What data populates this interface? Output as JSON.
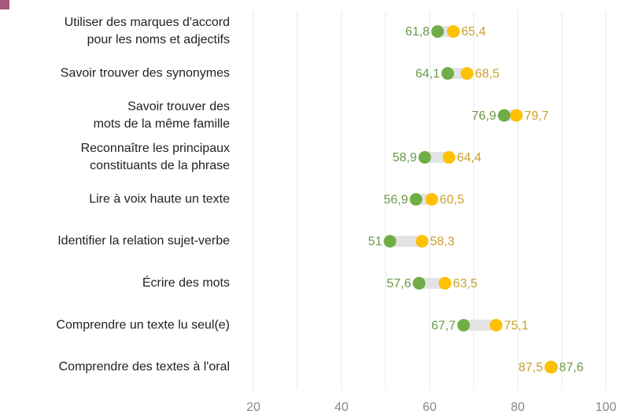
{
  "chart_data": {
    "type": "dumbbell",
    "categories": [
      [
        "Utiliser des marques d'accord",
        "pour les noms et adjectifs"
      ],
      [
        "Savoir trouver des synonymes"
      ],
      [
        "Savoir trouver des",
        "mots de la même famille"
      ],
      [
        "Reconnaître les principaux",
        "constituants de la phrase"
      ],
      [
        "Lire à voix haute un texte"
      ],
      [
        "Identifier la relation sujet-verbe"
      ],
      [
        "Écrire des mots"
      ],
      [
        "Comprendre un texte lu seul(e)"
      ],
      [
        "Comprendre des textes à l'oral"
      ]
    ],
    "series": [
      {
        "color": "#70ad47",
        "label_color": "#6a9a48",
        "values": [
          61.8,
          64.1,
          76.9,
          58.9,
          56.9,
          51,
          57.6,
          67.7,
          87.6
        ],
        "value_labels": [
          "61,8",
          "64,1",
          "76,9",
          "58,9",
          "56,9",
          "51",
          "57,6",
          "67,7",
          "87,6"
        ]
      },
      {
        "color": "#ffc000",
        "label_color": "#c9a02a",
        "values": [
          65.4,
          68.5,
          79.7,
          64.4,
          60.5,
          58.3,
          63.5,
          75.1,
          87.5
        ],
        "value_labels": [
          "65,4",
          "68,5",
          "79,7",
          "64,4",
          "60,5",
          "58,3",
          "63,5",
          "75,1",
          "87,5"
        ]
      }
    ],
    "xlim": [
      15,
      100
    ],
    "xticks": [
      20,
      40,
      60,
      80,
      100
    ],
    "xgrid": [
      20,
      30,
      40,
      50,
      60,
      70,
      80,
      90,
      100
    ],
    "grid": true
  }
}
